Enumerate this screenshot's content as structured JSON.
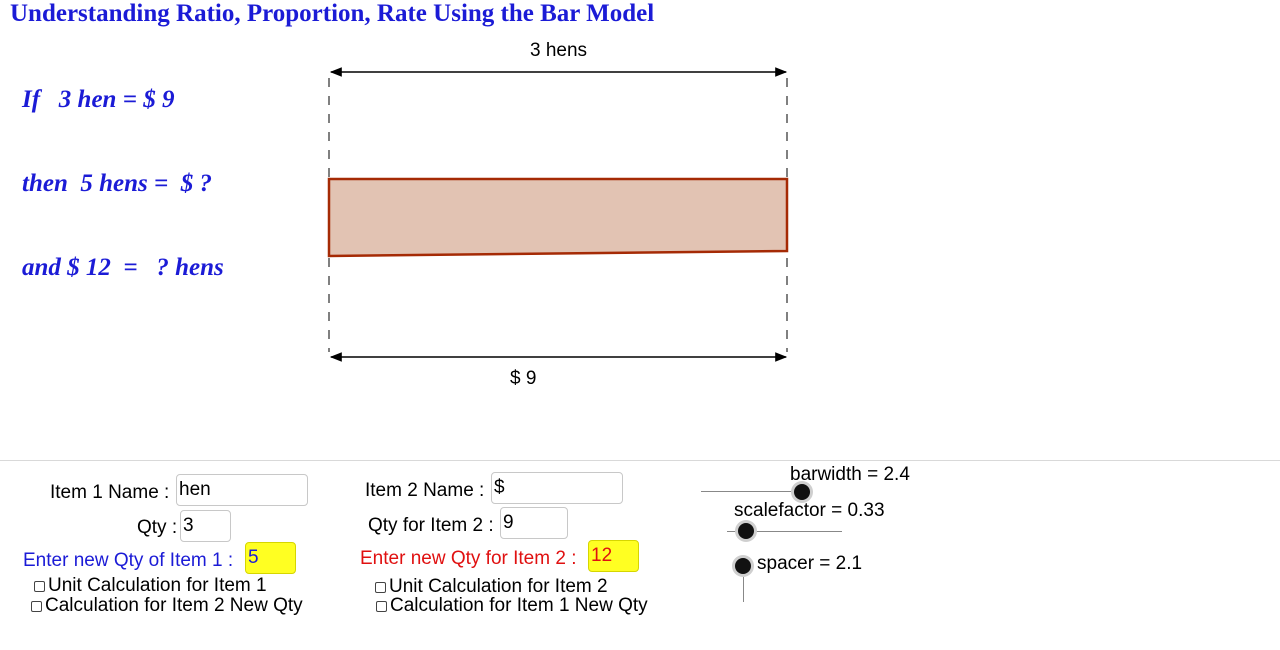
{
  "title": "Understanding Ratio, Proportion, Rate Using the Bar Model",
  "statements": {
    "line1": "If   3 hen = $ 9",
    "line2": "then  5 hens =  $ ?",
    "line3": "and $ 12  =   ? hens"
  },
  "bar_model": {
    "top_dimension_label": "3  hens",
    "bottom_dimension_label": "$ 9",
    "bar_fill": "#e2c3b3",
    "bar_stroke": "#a52a05"
  },
  "form": {
    "item1": {
      "name_label": "Item 1 Name :",
      "name_value": "hen",
      "qty_label": "Qty :",
      "qty_value": "3",
      "new_qty_label": "Enter new Qty of Item 1 :",
      "new_qty_value": "5",
      "checkbox_unit": "Unit Calculation for Item 1",
      "checkbox_calc": "Calculation for Item 2 New Qty"
    },
    "item2": {
      "name_label": "Item 2 Name :",
      "name_value": "$",
      "qty_label": "Qty for Item 2 :",
      "qty_value": "9",
      "new_qty_label": "Enter new Qty for Item 2 :",
      "new_qty_value": "12",
      "checkbox_unit": "Unit Calculation for Item 2",
      "checkbox_calc": "Calculation for Item 1 New Qty"
    }
  },
  "sliders": {
    "barwidth": "barwidth = 2.4",
    "scalefactor": "scalefactor = 0.33",
    "spacer": "spacer = 2.1"
  },
  "colors": {
    "accent_blue": "#1b1bd6",
    "accent_red": "#e01010",
    "input_highlight": "#ffff22"
  }
}
